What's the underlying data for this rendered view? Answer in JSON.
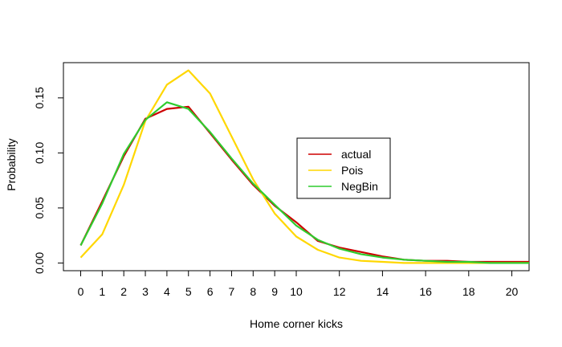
{
  "chart_data": {
    "type": "line",
    "title": "",
    "xlabel": "Home corner kicks",
    "ylabel": "Probability",
    "xlim": [
      -0.8,
      20.8
    ],
    "ylim": [
      -0.007,
      0.182
    ],
    "x_ticks": [
      0,
      1,
      2,
      3,
      4,
      5,
      6,
      7,
      8,
      9,
      10,
      12,
      14,
      16,
      18,
      20
    ],
    "y_ticks": [
      "0.00",
      "0.05",
      "0.10",
      "0.15"
    ],
    "y_tick_values": [
      0.0,
      0.05,
      0.1,
      0.15
    ],
    "grid": false,
    "legend_position": "center-right",
    "x": [
      0,
      1,
      2,
      3,
      4,
      5,
      6,
      7,
      8,
      9,
      10,
      11,
      12,
      13,
      14,
      15,
      16,
      17,
      18,
      19,
      20,
      21
    ],
    "series": [
      {
        "name": "actual",
        "color": "#CD0000",
        "values": [
          0.016,
          0.056,
          0.097,
          0.131,
          0.14,
          0.142,
          0.118,
          0.094,
          0.071,
          0.052,
          0.037,
          0.02,
          0.014,
          0.01,
          0.006,
          0.003,
          0.002,
          0.002,
          0.001,
          0.001,
          0.001,
          0.001
        ]
      },
      {
        "name": "Pois",
        "color": "#FFD700",
        "values": [
          0.005,
          0.026,
          0.071,
          0.129,
          0.162,
          0.175,
          0.154,
          0.115,
          0.076,
          0.045,
          0.024,
          0.012,
          0.005,
          0.002,
          0.001,
          0.0,
          0.0,
          0.0,
          0.0,
          0.0,
          0.0,
          0.0
        ]
      },
      {
        "name": "NegBin",
        "color": "#2ECC2E",
        "values": [
          0.016,
          0.054,
          0.099,
          0.13,
          0.146,
          0.14,
          0.119,
          0.095,
          0.072,
          0.053,
          0.034,
          0.021,
          0.013,
          0.008,
          0.005,
          0.003,
          0.002,
          0.001,
          0.001,
          0.0,
          0.0,
          0.0
        ]
      }
    ]
  }
}
